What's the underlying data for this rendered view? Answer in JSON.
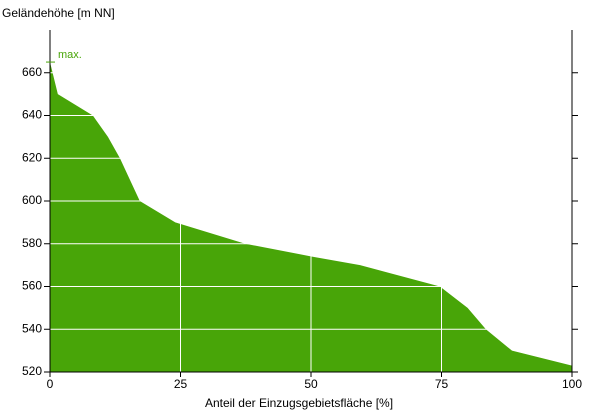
{
  "chart_data": {
    "type": "area",
    "y_label": "Geländehöhe [m NN]",
    "x_label": "Anteil der Einzugsgebietsfläche [%]",
    "x": [
      0,
      1.5,
      8.2,
      11.1,
      13.4,
      17.2,
      24,
      37.4,
      50.2,
      59.4,
      74.7,
      80,
      83.5,
      88.5,
      100
    ],
    "y": [
      665,
      650,
      640,
      630,
      620,
      600,
      590,
      580,
      574,
      570,
      560,
      550,
      540,
      530,
      523
    ],
    "color": "#48a508",
    "xlim": [
      0,
      100
    ],
    "xticks": [
      0,
      25,
      50,
      75,
      100
    ],
    "ylim": [
      520,
      680
    ],
    "yticks": [
      520,
      540,
      560,
      580,
      600,
      620,
      640,
      660
    ],
    "grid": true,
    "annotation": {
      "text": "max.",
      "y": 665
    }
  }
}
